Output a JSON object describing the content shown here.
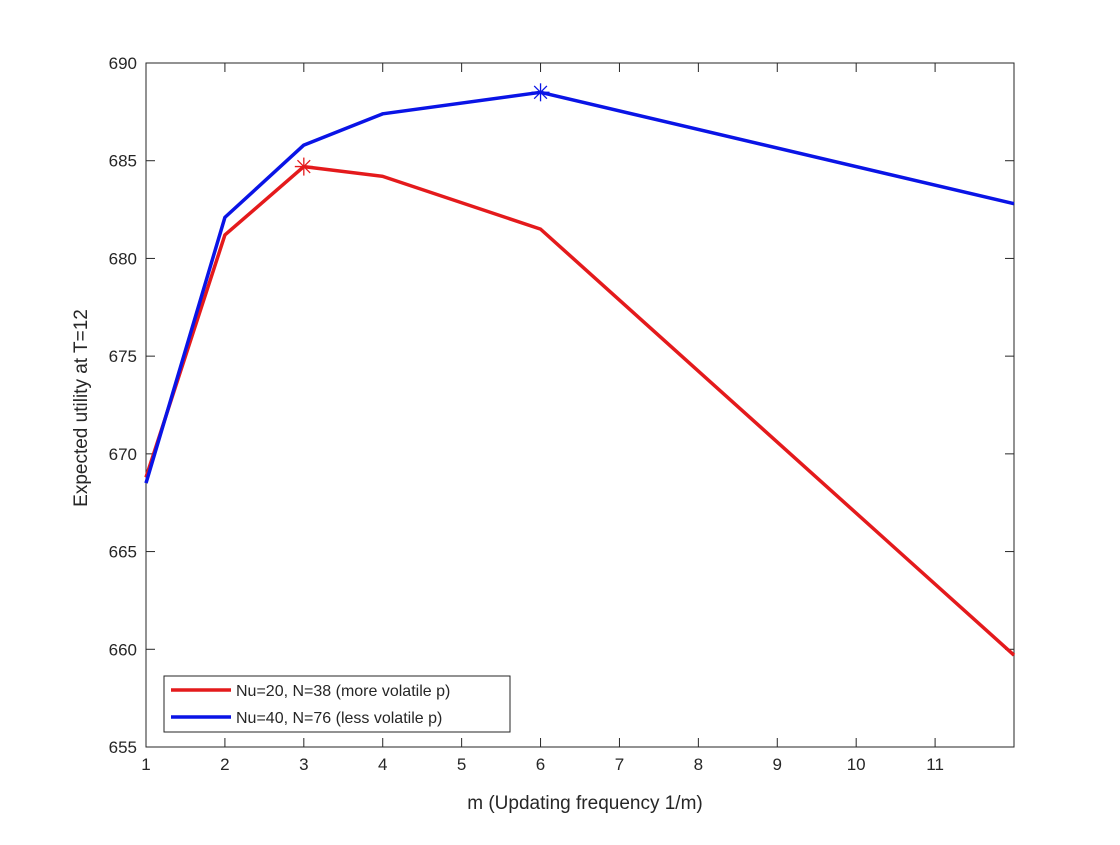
{
  "chart_data": {
    "type": "line",
    "title": "",
    "xlabel": "m (Updating frequency 1/m)",
    "ylabel": "Expected utility at T=12",
    "xlim": [
      1,
      12
    ],
    "ylim": [
      655,
      690
    ],
    "x_ticks": [
      1,
      2,
      3,
      4,
      5,
      6,
      7,
      8,
      9,
      10,
      11
    ],
    "y_ticks": [
      655,
      660,
      665,
      670,
      675,
      680,
      685,
      690
    ],
    "grid": false,
    "legend_location": "bottom-left",
    "series": [
      {
        "name": "Nu=20, N=38 (more volatile p)",
        "color": "#e41a1c",
        "x": [
          1,
          2,
          3,
          4,
          6,
          12
        ],
        "y": [
          668.8,
          681.2,
          684.7,
          684.2,
          681.5,
          659.7
        ],
        "marker": {
          "symbol": "asterisk",
          "x": 3,
          "y": 684.7
        }
      },
      {
        "name": "Nu=40, N=76 (less volatile p)",
        "color": "#0a14e6",
        "x": [
          1,
          2,
          3,
          4,
          6,
          12
        ],
        "y": [
          668.5,
          682.1,
          685.8,
          687.4,
          688.5,
          682.8
        ],
        "marker": {
          "symbol": "asterisk",
          "x": 6,
          "y": 688.5
        }
      }
    ]
  }
}
